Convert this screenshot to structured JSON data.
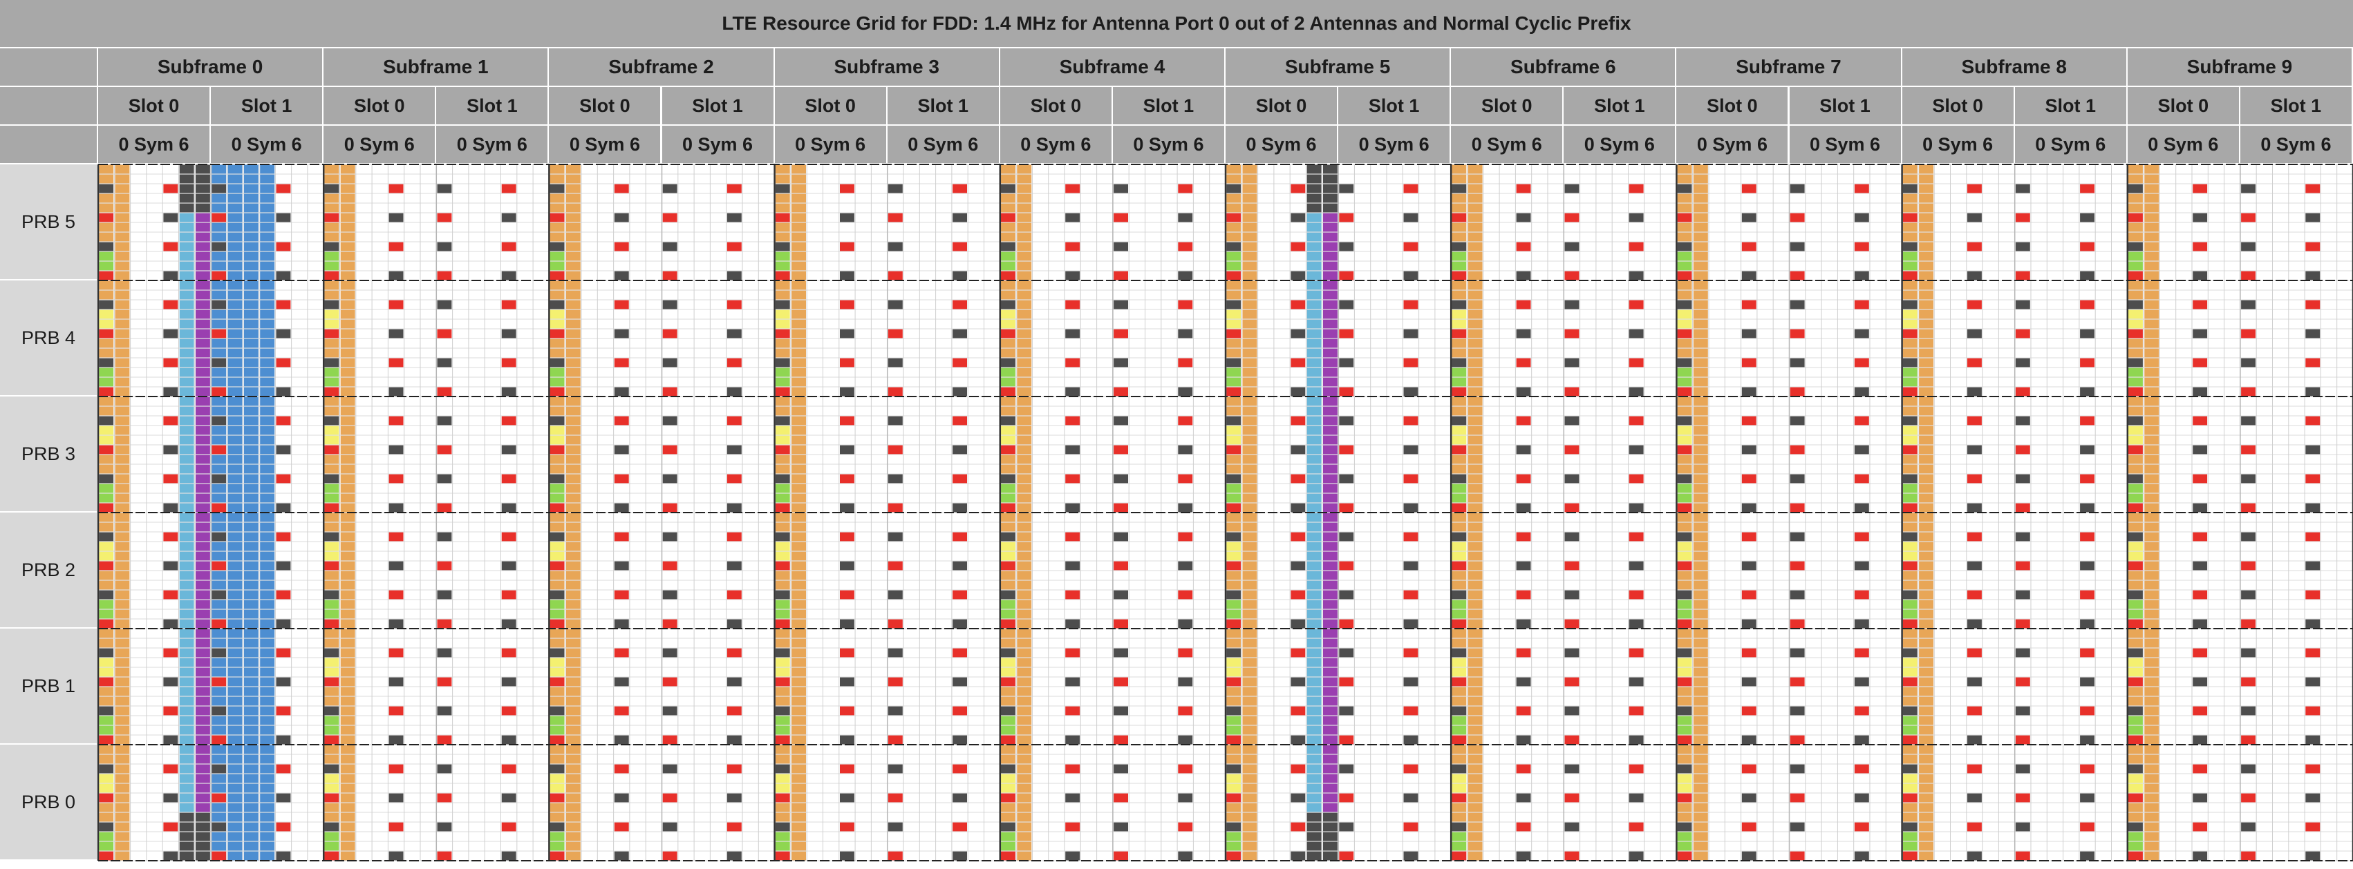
{
  "title": "LTE Resource Grid for FDD: 1.4 MHz for Antenna Port 0 out of 2 Antennas and Normal Cyclic Prefix",
  "subframes": [
    "Subframe 0",
    "Subframe 1",
    "Subframe 2",
    "Subframe 3",
    "Subframe 4",
    "Subframe 5",
    "Subframe 6",
    "Subframe 7",
    "Subframe 8",
    "Subframe 9"
  ],
  "slots": [
    "Slot 0",
    "Slot 1"
  ],
  "symbol_label": "0 Sym 6",
  "prbs": [
    "PRB 5",
    "PRB 4",
    "PRB 3",
    "PRB 2",
    "PRB 1",
    "PRB 0"
  ],
  "colors": {
    "header_bg": "#a8a8a8",
    "label_bg": "#d8d8d8",
    "grid_line": "#cfcfcf",
    "pdcch": "#e8a657",
    "pcfich": "#8fd651",
    "phich": "#f4f070",
    "crs_port0": "#e8302a",
    "crs_other_port": "#4d4d4d",
    "pss": "#9a3fb0",
    "sss": "#6bb7d9",
    "pbch": "#4d8ed1"
  },
  "grid": {
    "subframes": 10,
    "slots_per_subframe": 2,
    "symbols_per_slot": 7,
    "prbs": 6,
    "subcarriers_per_prb": 12,
    "control_symbols": 2,
    "sync_subframes": [
      0,
      5
    ],
    "pbch_subframe": 0
  }
}
